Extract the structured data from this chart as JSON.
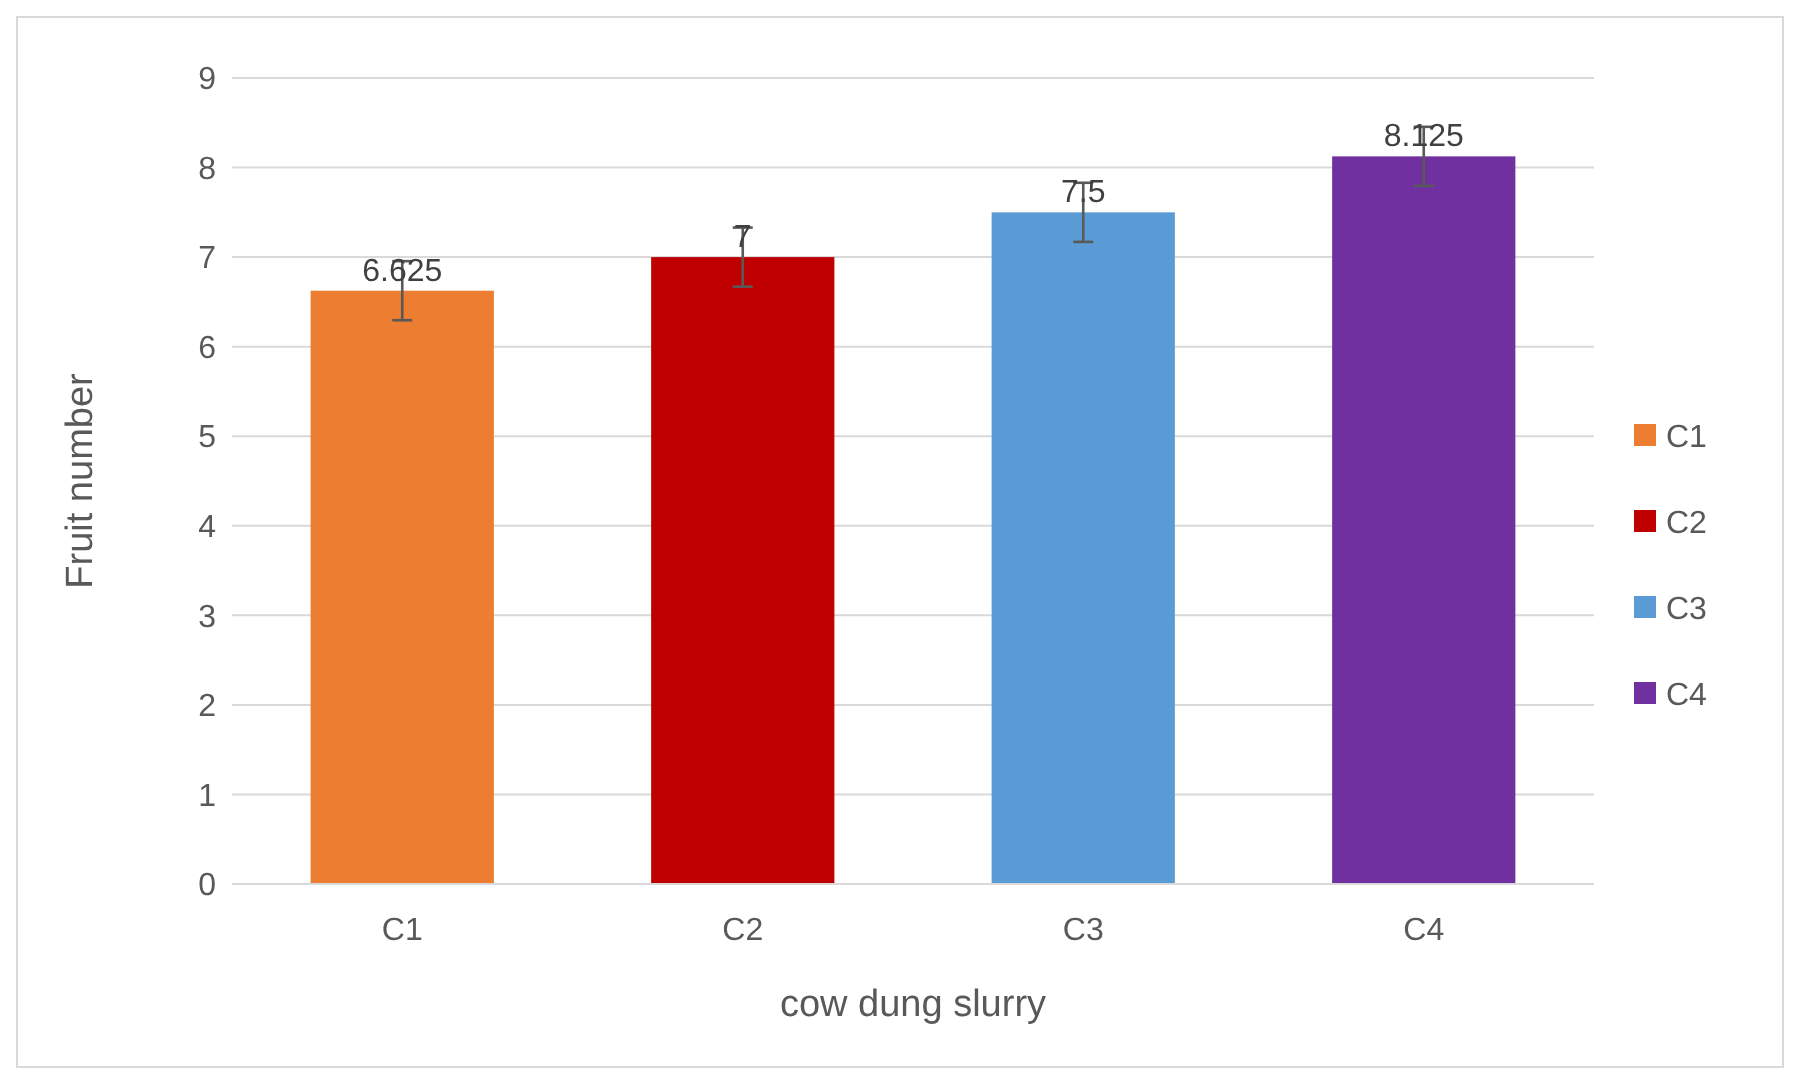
{
  "chart_data": {
    "type": "bar",
    "xlabel": "cow dung slurry",
    "ylabel": "Fruit number",
    "categories": [
      "C1",
      "C2",
      "C3",
      "C4"
    ],
    "series": [
      {
        "name": "C1",
        "color": "#ed7d31",
        "values": [
          6.625,
          null,
          null,
          null
        ],
        "errors": [
          0.33,
          null,
          null,
          null
        ]
      },
      {
        "name": "C2",
        "color": "#c00000",
        "values": [
          null,
          7,
          null,
          null
        ],
        "errors": [
          null,
          0.33,
          null,
          null
        ]
      },
      {
        "name": "C3",
        "color": "#5b9bd5",
        "values": [
          null,
          null,
          7.5,
          null
        ],
        "errors": [
          null,
          null,
          0.33,
          null
        ]
      },
      {
        "name": "C4",
        "color": "#7030a0",
        "values": [
          null,
          null,
          null,
          8.125
        ],
        "errors": [
          null,
          null,
          null,
          0.33
        ]
      }
    ],
    "ylim": [
      0,
      9
    ],
    "yticks": [
      0,
      1,
      2,
      3,
      4,
      5,
      6,
      7,
      8,
      9
    ],
    "grid": "y",
    "legend": "right",
    "data_labels": true
  }
}
